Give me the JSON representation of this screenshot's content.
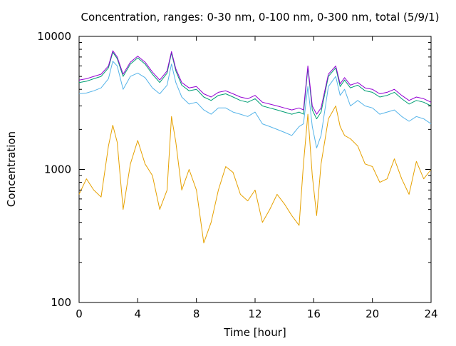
{
  "chart_data": {
    "type": "line",
    "title": "Concentration, ranges: 0-30 nm, 0-100 nm, 0-300 nm, total (5/9/1)",
    "xlabel": "Time [hour]",
    "ylabel": "Concentration",
    "xlim": [
      0,
      24
    ],
    "ylim": [
      100,
      10000
    ],
    "y_scale": "log",
    "x_ticks": [
      0,
      4,
      8,
      12,
      16,
      20,
      24
    ],
    "x_tick_labels": [
      "0",
      "4",
      "8",
      "12",
      "16",
      "20",
      "24"
    ],
    "y_ticks": [
      100,
      1000,
      10000
    ],
    "y_tick_labels": [
      "100",
      "1000",
      "10000"
    ],
    "grid": false,
    "legend": "none",
    "x": [
      0,
      0.5,
      1,
      1.5,
      2,
      2.3,
      2.6,
      3,
      3.5,
      4,
      4.5,
      5,
      5.5,
      6,
      6.3,
      6.6,
      7,
      7.5,
      8,
      8.5,
      9,
      9.5,
      10,
      10.5,
      11,
      11.5,
      12,
      12.5,
      13,
      13.5,
      14,
      14.5,
      15,
      15.3,
      15.6,
      15.9,
      16.2,
      16.5,
      17,
      17.5,
      17.8,
      18.1,
      18.5,
      19,
      19.5,
      20,
      20.5,
      21,
      21.5,
      22,
      22.5,
      23,
      23.5,
      24
    ],
    "series": [
      {
        "color": "#e6a100",
        "values": [
          650,
          850,
          700,
          620,
          1500,
          2150,
          1600,
          500,
          1100,
          1650,
          1100,
          900,
          500,
          700,
          2500,
          1600,
          700,
          1000,
          700,
          280,
          400,
          700,
          1050,
          950,
          650,
          580,
          700,
          400,
          500,
          650,
          550,
          450,
          380,
          1100,
          2600,
          900,
          450,
          1100,
          2400,
          3000,
          2100,
          1800,
          1700,
          1500,
          1100,
          1050,
          800,
          850,
          1200,
          850,
          650,
          1150,
          850,
          1000
        ]
      },
      {
        "color": "#56b4e9",
        "values": [
          3700,
          3750,
          3900,
          4100,
          4800,
          6500,
          6000,
          4000,
          5000,
          5300,
          4900,
          4100,
          3700,
          4300,
          6200,
          4500,
          3500,
          3100,
          3200,
          2800,
          2600,
          2900,
          2900,
          2700,
          2600,
          2500,
          2700,
          2200,
          2100,
          2000,
          1900,
          1800,
          2100,
          2200,
          4200,
          2100,
          1450,
          1800,
          4200,
          5000,
          3600,
          4000,
          3000,
          3300,
          3000,
          2900,
          2600,
          2700,
          2800,
          2500,
          2300,
          2500,
          2400,
          2200
        ]
      },
      {
        "color": "#009e73",
        "values": [
          4500,
          4600,
          4800,
          5000,
          5800,
          7600,
          6800,
          5000,
          6200,
          6900,
          6200,
          5200,
          4500,
          5300,
          7500,
          5500,
          4300,
          3900,
          4000,
          3500,
          3300,
          3600,
          3700,
          3500,
          3300,
          3200,
          3400,
          3000,
          2900,
          2800,
          2700,
          2600,
          2700,
          2600,
          5800,
          2800,
          2400,
          2700,
          5000,
          5800,
          4200,
          4700,
          4100,
          4300,
          3900,
          3800,
          3500,
          3600,
          3800,
          3400,
          3100,
          3300,
          3200,
          3000
        ]
      },
      {
        "color": "#9400d3",
        "values": [
          4700,
          4800,
          5000,
          5200,
          6000,
          7800,
          7000,
          5200,
          6400,
          7100,
          6400,
          5400,
          4700,
          5500,
          7700,
          5700,
          4500,
          4100,
          4200,
          3700,
          3500,
          3800,
          3900,
          3700,
          3500,
          3400,
          3600,
          3200,
          3100,
          3000,
          2900,
          2800,
          2900,
          2800,
          6000,
          3000,
          2600,
          2900,
          5200,
          6000,
          4400,
          4900,
          4300,
          4500,
          4100,
          4000,
          3700,
          3800,
          4000,
          3600,
          3300,
          3500,
          3400,
          3200
        ]
      }
    ]
  }
}
